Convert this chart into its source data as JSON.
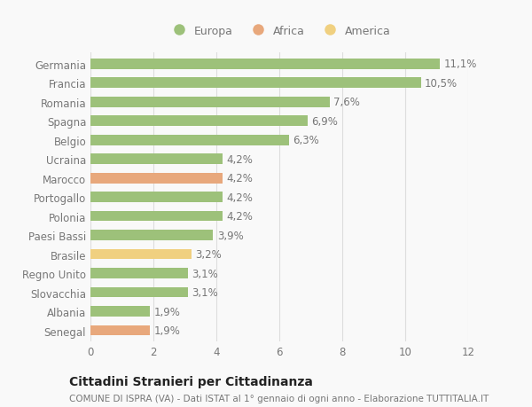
{
  "categories": [
    "Senegal",
    "Albania",
    "Slovacchia",
    "Regno Unito",
    "Brasile",
    "Paesi Bassi",
    "Polonia",
    "Portogallo",
    "Marocco",
    "Ucraina",
    "Belgio",
    "Spagna",
    "Romania",
    "Francia",
    "Germania"
  ],
  "values": [
    1.9,
    1.9,
    3.1,
    3.1,
    3.2,
    3.9,
    4.2,
    4.2,
    4.2,
    4.2,
    6.3,
    6.9,
    7.6,
    10.5,
    11.1
  ],
  "labels": [
    "1,9%",
    "1,9%",
    "3,1%",
    "3,1%",
    "3,2%",
    "3,9%",
    "4,2%",
    "4,2%",
    "4,2%",
    "4,2%",
    "6,3%",
    "6,9%",
    "7,6%",
    "10,5%",
    "11,1%"
  ],
  "colors": [
    "#e8a87c",
    "#9dc17a",
    "#9dc17a",
    "#9dc17a",
    "#f0d080",
    "#9dc17a",
    "#9dc17a",
    "#9dc17a",
    "#e8a87c",
    "#9dc17a",
    "#9dc17a",
    "#9dc17a",
    "#9dc17a",
    "#9dc17a",
    "#9dc17a"
  ],
  "legend": [
    {
      "label": "Europa",
      "color": "#9dc17a"
    },
    {
      "label": "Africa",
      "color": "#e8a87c"
    },
    {
      "label": "America",
      "color": "#f0d080"
    }
  ],
  "xlim": [
    0,
    12
  ],
  "xticks": [
    0,
    2,
    4,
    6,
    8,
    10,
    12
  ],
  "title": "Cittadini Stranieri per Cittadinanza",
  "subtitle": "COMUNE DI ISPRA (VA) - Dati ISTAT al 1° gennaio di ogni anno - Elaborazione TUTTITALIA.IT",
  "bg_color": "#f9f9f9",
  "bar_height": 0.55,
  "grid_color": "#dddddd",
  "text_color": "#777777",
  "label_fontsize": 8.5,
  "tick_fontsize": 8.5,
  "title_fontsize": 10,
  "subtitle_fontsize": 7.5
}
